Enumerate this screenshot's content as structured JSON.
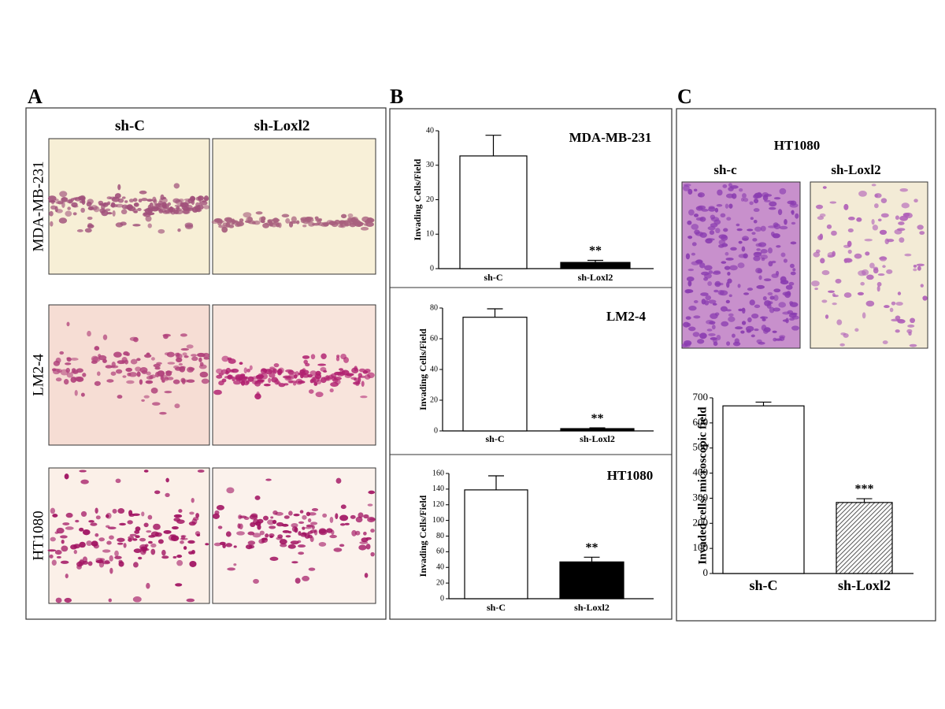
{
  "panels": {
    "A": {
      "label": "A",
      "columns": [
        "sh-C",
        "sh-Loxl2"
      ],
      "rows": [
        "MDA-MB-231",
        "LM2-4",
        "HT1080"
      ]
    },
    "B": {
      "label": "B"
    },
    "C": {
      "label": "C",
      "title": "HT1080",
      "columns": [
        "sh-c",
        "sh-Loxl2"
      ]
    }
  },
  "chart_data": [
    {
      "type": "bar",
      "title": "MDA-MB-231",
      "y_label": "Invading Cells/Field",
      "categories": [
        "sh-C",
        "sh-Loxl2"
      ],
      "values": [
        32.7,
        1.8
      ],
      "errors": [
        6,
        0.6
      ],
      "annotations": [
        null,
        "**"
      ],
      "colors": [
        "#ffffff",
        "#000000"
      ],
      "hatch": [
        false,
        false
      ],
      "ylim": [
        0,
        40
      ],
      "yticks": [
        0,
        10,
        20,
        30,
        40
      ]
    },
    {
      "type": "bar",
      "title": "LM2-4",
      "y_label": "Invading Cells/Field",
      "categories": [
        "sh-C",
        "sh-Loxl2"
      ],
      "values": [
        74,
        1.5
      ],
      "errors": [
        5.5,
        0.5
      ],
      "annotations": [
        null,
        "**"
      ],
      "colors": [
        "#ffffff",
        "#000000"
      ],
      "hatch": [
        false,
        false
      ],
      "ylim": [
        0,
        80
      ],
      "yticks": [
        0,
        20,
        40,
        60,
        80
      ]
    },
    {
      "type": "bar",
      "title": "HT1080",
      "y_label": "Invading Cells/Field",
      "categories": [
        "sh-C",
        "sh-Loxl2"
      ],
      "values": [
        139,
        47
      ],
      "errors": [
        18,
        6
      ],
      "annotations": [
        null,
        "**"
      ],
      "colors": [
        "#ffffff",
        "#000000"
      ],
      "hatch": [
        false,
        false
      ],
      "ylim": [
        0,
        160
      ],
      "yticks": [
        0,
        20,
        40,
        60,
        80,
        100,
        120,
        140,
        160
      ]
    },
    {
      "type": "bar",
      "y_label": "Invaded cells/ microscopic field",
      "categories": [
        "sh-C",
        "sh-Loxl2"
      ],
      "values": [
        668,
        283
      ],
      "errors": [
        15,
        15
      ],
      "annotations": [
        null,
        "***"
      ],
      "colors": [
        "#ffffff",
        "#888888"
      ],
      "hatch": [
        false,
        true
      ],
      "ylim": [
        0,
        700
      ],
      "yticks": [
        0,
        100,
        200,
        300,
        400,
        500,
        600,
        700
      ]
    }
  ]
}
